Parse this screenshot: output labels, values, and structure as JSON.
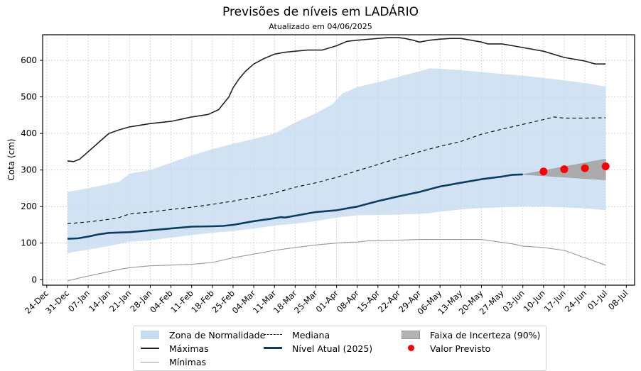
{
  "chart_data": {
    "type": "line",
    "title": "Previsões de níveis em LADÁRIO",
    "subtitle": "Atualizado em 04/06/2025",
    "xlabel": "",
    "ylabel": "Cota (cm)",
    "ylim": [
      -15,
      670
    ],
    "yticks": [
      0,
      100,
      200,
      300,
      400,
      500,
      600
    ],
    "xtick_labels": [
      "24-Dec",
      "31-Dec",
      "07-Jan",
      "14-Jan",
      "21-Jan",
      "28-Jan",
      "04-Feb",
      "11-Feb",
      "18-Feb",
      "25-Feb",
      "04-Mar",
      "11-Mar",
      "18-Mar",
      "25-Mar",
      "01-Apr",
      "08-Apr",
      "15-Apr",
      "22-Apr",
      "29-Apr",
      "06-May",
      "13-May",
      "20-May",
      "27-May",
      "03-Jun",
      "10-Jun",
      "17-Jun",
      "24-Jun",
      "01-Jul",
      "08-Jul"
    ],
    "x_unit": "weeks since 24-Dec",
    "xlim": [
      -0.2,
      28.4
    ],
    "grid": true,
    "legend_position": "bottom-center (outside)",
    "colors": {
      "normal_zone": "#c6dbef",
      "maximas": "#222222",
      "minimas": "#999999",
      "mediana": "#111111",
      "nivel_atual": "#0b3d63",
      "incerteza": "#a6a6a6",
      "previsto": "#ff0000"
    },
    "series": [
      {
        "name": "Zona de Normalidade",
        "kind": "band",
        "x": [
          1,
          1.3,
          2,
          3,
          3.5,
          4,
          5,
          6,
          7,
          8,
          9,
          10,
          11,
          12,
          13,
          13.8,
          14.3,
          15,
          16,
          17,
          18,
          18.5,
          19,
          20,
          21,
          22,
          23,
          24,
          25,
          26,
          27
        ],
        "upper": [
          240,
          243,
          250,
          262,
          268,
          290,
          300,
          320,
          340,
          357,
          372,
          385,
          400,
          430,
          455,
          480,
          510,
          527,
          540,
          555,
          570,
          578,
          577,
          573,
          568,
          563,
          558,
          552,
          545,
          538,
          528
        ],
        "lower": [
          72,
          76,
          82,
          92,
          98,
          104,
          108,
          115,
          122,
          128,
          133,
          140,
          148,
          153,
          160,
          168,
          172,
          176,
          177,
          178,
          180,
          182,
          186,
          192,
          196,
          198,
          200,
          200,
          198,
          195,
          190
        ]
      },
      {
        "name": "Máximas",
        "kind": "line",
        "x": [
          1,
          1.3,
          1.6,
          2,
          2.5,
          3,
          3.5,
          4,
          5,
          6,
          7,
          7.8,
          8.3,
          8.8,
          9,
          9.3,
          9.6,
          10,
          10.5,
          11,
          11.5,
          12,
          12.6,
          13,
          13.3,
          14,
          14.5,
          15,
          16,
          16.5,
          17,
          17.3,
          17.7,
          18,
          18.5,
          19,
          19.5,
          20,
          20.5,
          21,
          21.3,
          22,
          23,
          24,
          25,
          26,
          26.5,
          27
        ],
        "values": [
          325,
          323,
          330,
          350,
          375,
          400,
          410,
          418,
          427,
          433,
          445,
          452,
          465,
          500,
          525,
          550,
          570,
          590,
          605,
          617,
          622,
          625,
          628,
          628,
          628,
          640,
          652,
          655,
          660,
          662,
          662,
          660,
          655,
          650,
          655,
          658,
          660,
          660,
          655,
          650,
          645,
          645,
          635,
          625,
          608,
          598,
          590,
          590
        ]
      },
      {
        "name": "Mínimas",
        "kind": "line",
        "x": [
          1,
          1.4,
          1.6,
          2,
          3,
          3.5,
          4,
          5,
          6,
          7,
          8,
          9,
          10,
          11,
          12,
          13,
          14,
          14.5,
          15,
          15.5,
          16,
          17,
          18,
          19,
          20,
          21,
          22,
          22.5,
          23,
          24,
          25,
          26,
          27
        ],
        "values": [
          -3,
          2,
          5,
          10,
          22,
          28,
          33,
          38,
          40,
          42,
          47,
          60,
          70,
          80,
          88,
          95,
          100,
          102,
          103,
          106,
          106,
          108,
          110,
          110,
          110,
          110,
          102,
          98,
          92,
          88,
          80,
          60,
          40
        ]
      },
      {
        "name": "Mediana",
        "kind": "dashed-line",
        "x": [
          1,
          2,
          3,
          3.5,
          4,
          5,
          6,
          7,
          8,
          9,
          10,
          11,
          12,
          13,
          14,
          15,
          16,
          17,
          18,
          19,
          20,
          21,
          22,
          23,
          24,
          24.5,
          25,
          26,
          27
        ],
        "values": [
          153,
          158,
          165,
          170,
          180,
          185,
          192,
          198,
          206,
          215,
          225,
          237,
          253,
          265,
          280,
          298,
          315,
          333,
          350,
          365,
          378,
          398,
          412,
          425,
          438,
          445,
          442,
          442,
          443
        ]
      },
      {
        "name": "Nível Atual (2025)",
        "kind": "line",
        "x": [
          1,
          1.5,
          2,
          2.5,
          3,
          4,
          5,
          6,
          7,
          8,
          8.5,
          9,
          10,
          11,
          11.3,
          11.5,
          12,
          13,
          14,
          15,
          16,
          17,
          18,
          19,
          20,
          21,
          22,
          22.5,
          23
        ],
        "values": [
          112,
          113,
          118,
          124,
          128,
          130,
          135,
          140,
          145,
          146,
          147,
          150,
          160,
          168,
          171,
          170,
          175,
          185,
          190,
          200,
          215,
          228,
          240,
          255,
          265,
          275,
          282,
          287,
          288
        ]
      },
      {
        "name": "Faixa de Incerteza (90%)",
        "kind": "band",
        "x": [
          23,
          27
        ],
        "upper": [
          288,
          330
        ],
        "lower": [
          288,
          273
        ]
      },
      {
        "name": "Valor Previsto",
        "kind": "scatter",
        "x": [
          24,
          25,
          26,
          27
        ],
        "values": [
          296,
          302,
          305,
          310
        ]
      }
    ],
    "legend": [
      {
        "label": "Zona de Normalidade",
        "style": "patch-lightblue"
      },
      {
        "label": "Mediana",
        "style": "dashed"
      },
      {
        "label": "Faixa de Incerteza (90%)",
        "style": "patch-gray"
      },
      {
        "label": "Máximas",
        "style": "line-dark"
      },
      {
        "label": "Nível Atual (2025)",
        "style": "line-navy-thick"
      },
      {
        "label": "Valor Previsto",
        "style": "red-dot"
      },
      {
        "label": "Mínimas",
        "style": "line-gray"
      }
    ]
  }
}
